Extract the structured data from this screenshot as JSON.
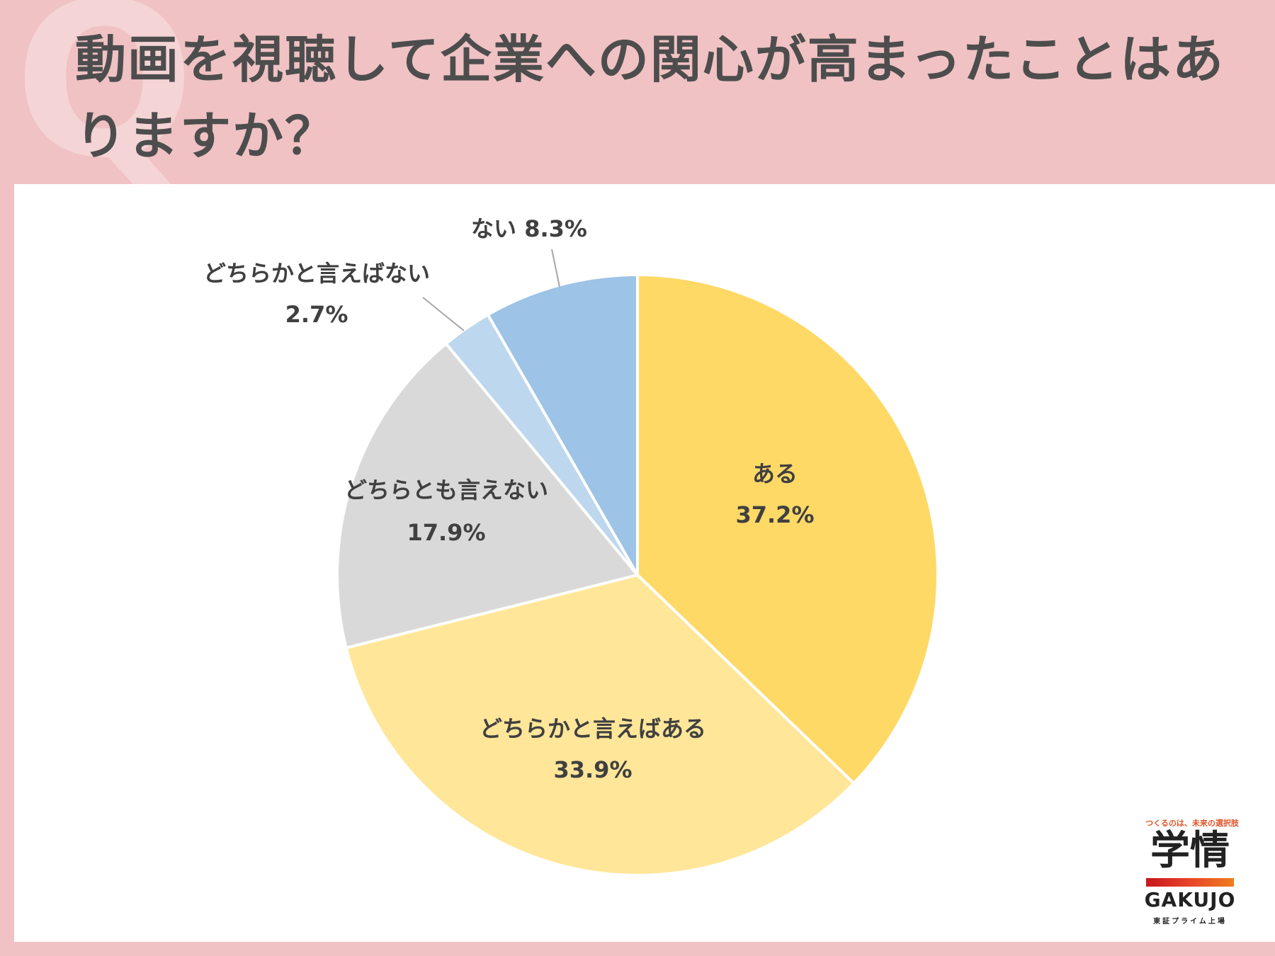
{
  "question_mark": "Q",
  "question": "動画を視聴して企業への関心が高まったことはありますか？",
  "chart_data": {
    "type": "pie",
    "start_angle_deg": 0,
    "direction": "clockwise",
    "slices": [
      {
        "label": "ある",
        "value": 37.2,
        "value_text": "37.2%",
        "color": "#ffd966"
      },
      {
        "label": "どちらかと言えばある",
        "value": 33.9,
        "value_text": "33.9%",
        "color": "#ffe699"
      },
      {
        "label": "どちらとも言えない",
        "value": 17.9,
        "value_text": "17.9%",
        "color": "#d9d9d9"
      },
      {
        "label": "どちらかと言えばない",
        "value": 2.7,
        "value_text": "2.7%",
        "color": "#bdd7ee"
      },
      {
        "label": "ない",
        "value": 8.3,
        "value_text": "8.3%",
        "color": "#9dc3e6"
      }
    ]
  },
  "logo": {
    "tagline": "つくるのは、未来の選択肢",
    "kanji": "学情",
    "brand": "GAKUJO",
    "listing": "東証プライム上場"
  },
  "colors": {
    "background": "#f0c2c4",
    "title_text": "#4d4d4d",
    "label_text": "#404040"
  }
}
